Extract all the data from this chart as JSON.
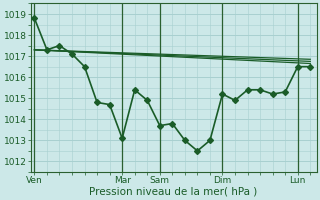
{
  "title": "",
  "xlabel": "Pression niveau de la mer( hPa )",
  "ylabel": "",
  "background_color": "#cce8e8",
  "grid_color": "#a8d0d0",
  "line_color": "#1a5c28",
  "ylim": [
    1011.5,
    1019.5
  ],
  "yticks": [
    1012,
    1013,
    1014,
    1015,
    1016,
    1017,
    1018,
    1019
  ],
  "xtick_labels": [
    "Ven",
    "Mar",
    "Sam",
    "Dim",
    "Lun"
  ],
  "xtick_positions": [
    0,
    7,
    10,
    15,
    21
  ],
  "vlines": [
    0,
    7,
    10,
    15,
    21
  ],
  "xlim": [
    -0.3,
    22.5
  ],
  "series": [
    {
      "x": [
        0,
        1,
        2,
        3,
        4,
        5,
        6,
        7,
        8,
        9,
        10,
        11,
        12,
        13,
        14,
        15,
        16,
        17,
        18,
        19,
        20,
        21,
        22
      ],
      "y": [
        1018.8,
        1017.3,
        1017.5,
        1017.1,
        1016.5,
        1014.8,
        1014.7,
        1013.1,
        1015.4,
        1014.9,
        1013.7,
        1013.8,
        1013.0,
        1012.5,
        1013.0,
        1015.2,
        1014.9,
        1015.4,
        1015.4,
        1015.2,
        1015.3,
        1016.5,
        1016.5
      ],
      "marker": "D",
      "markersize": 3.0,
      "linewidth": 1.2,
      "zorder": 5
    },
    {
      "x": [
        0,
        22
      ],
      "y": [
        1017.3,
        1016.65
      ],
      "marker": null,
      "markersize": 0,
      "linewidth": 0.9,
      "zorder": 4
    },
    {
      "x": [
        0,
        22
      ],
      "y": [
        1017.3,
        1016.75
      ],
      "marker": null,
      "markersize": 0,
      "linewidth": 0.9,
      "zorder": 4
    },
    {
      "x": [
        0,
        22
      ],
      "y": [
        1017.3,
        1016.85
      ],
      "marker": null,
      "markersize": 0,
      "linewidth": 0.9,
      "zorder": 4
    }
  ]
}
